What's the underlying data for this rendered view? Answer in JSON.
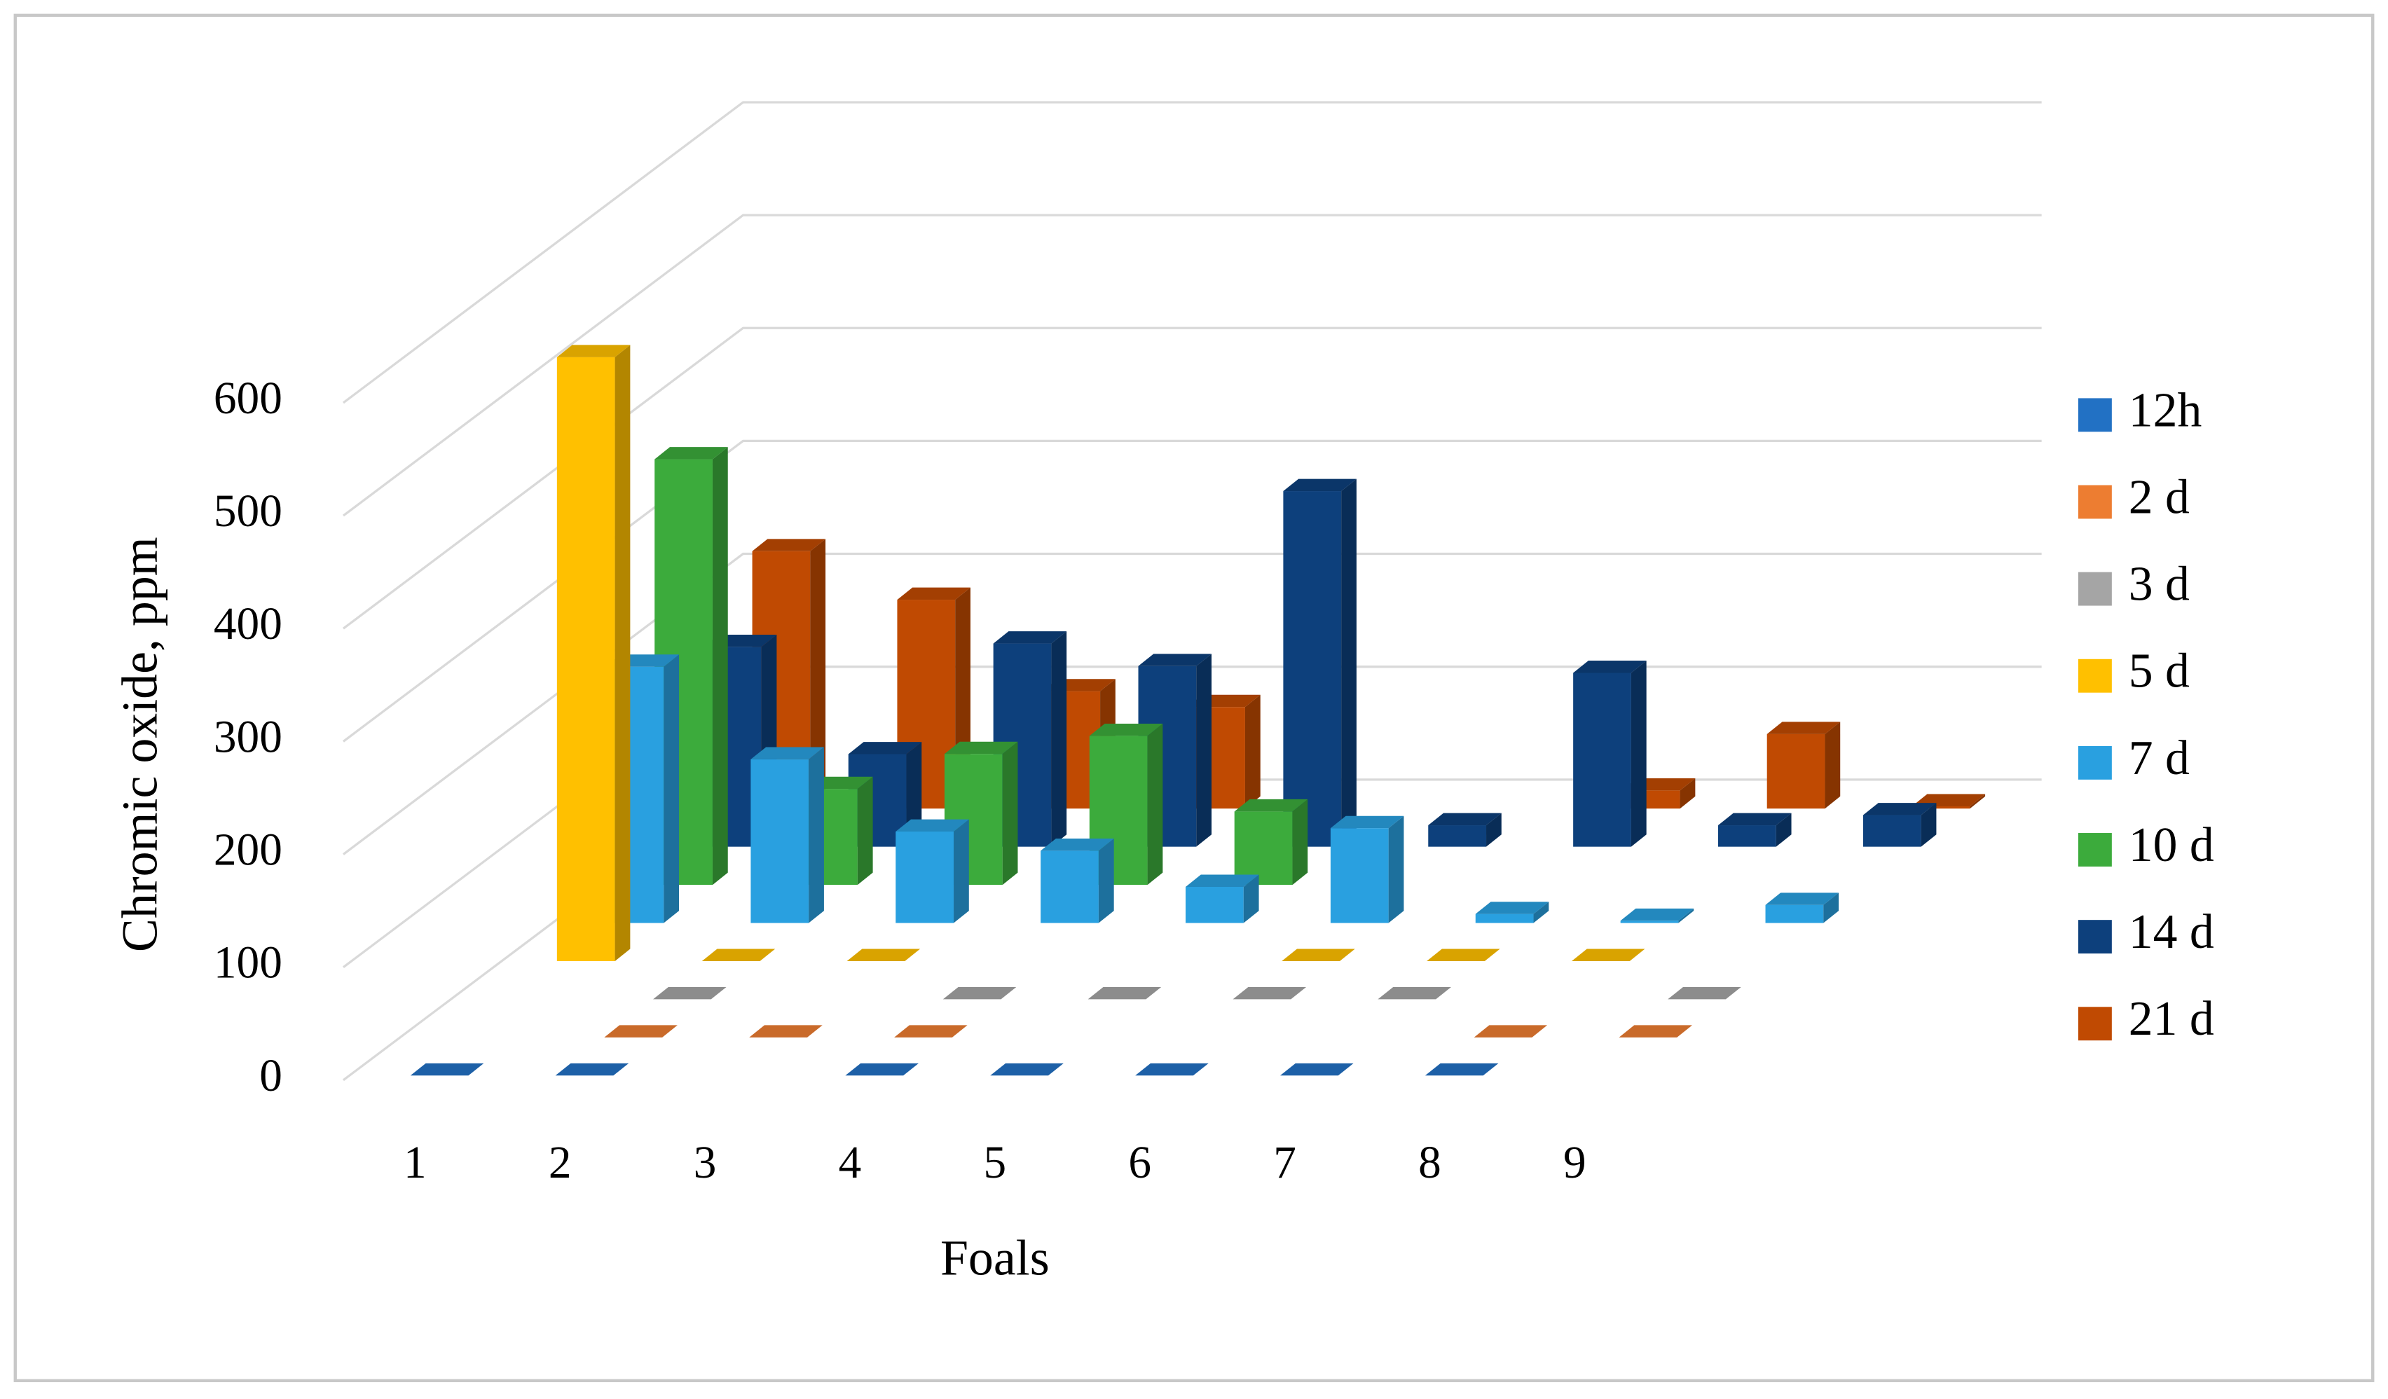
{
  "chart_data": {
    "type": "bar3d",
    "y_label": "Chromic oxide, ppm",
    "x_label": "Foals",
    "categories": [
      "1",
      "2",
      "3",
      "4",
      "5",
      "6",
      "7",
      "8",
      "9"
    ],
    "series": [
      {
        "name": "12h",
        "color": "#2271c4",
        "values": [
          0,
          0,
          null,
          0,
          0,
          0,
          0,
          0,
          null
        ]
      },
      {
        "name": "2 d",
        "color": "#ed7d31",
        "values": [
          null,
          0,
          0,
          0,
          null,
          null,
          null,
          0,
          0
        ]
      },
      {
        "name": "3 d",
        "color": "#a5a5a5",
        "values": [
          null,
          0,
          null,
          0,
          0,
          0,
          0,
          null,
          0
        ]
      },
      {
        "name": "5 d",
        "color": "#ffc000",
        "values": [
          535,
          0,
          0,
          null,
          null,
          0,
          0,
          0,
          null
        ]
      },
      {
        "name": "7 d",
        "color": "#29a0e0",
        "values": [
          227,
          145,
          81,
          64,
          32,
          84,
          8,
          2,
          16
        ]
      },
      {
        "name": "10 d",
        "color": "#3cab3c",
        "values": [
          377,
          85,
          116,
          132,
          65,
          null,
          null,
          null,
          null
        ]
      },
      {
        "name": "14 d",
        "color": "#0d407c",
        "values": [
          177,
          82,
          180,
          160,
          315,
          19,
          154,
          19,
          28
        ]
      },
      {
        "name": "21 d",
        "color": "#c04a02",
        "values": [
          228,
          185,
          104,
          90,
          null,
          null,
          16,
          66,
          2
        ]
      }
    ],
    "ylim": [
      0,
      600
    ],
    "yticks": [
      0,
      100,
      200,
      300,
      400,
      500,
      600
    ],
    "grid": true,
    "legend": "right"
  }
}
